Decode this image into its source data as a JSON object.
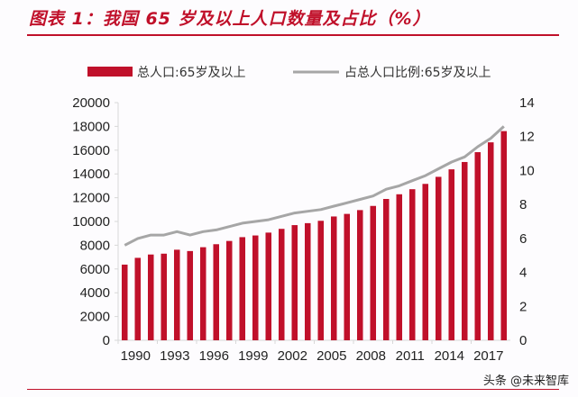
{
  "title": "图表 1：我国 65 岁及以上人口数量及占比（%）",
  "watermark": "头条 @未来智库",
  "chart_data": {
    "type": "bar+line",
    "title": "图表 1：我国 65 岁及以上人口数量及占比（%）",
    "categories": [
      1990,
      1991,
      1992,
      1993,
      1994,
      1995,
      1996,
      1997,
      1998,
      1999,
      2000,
      2001,
      2002,
      2003,
      2004,
      2005,
      2006,
      2007,
      2008,
      2009,
      2010,
      2011,
      2012,
      2013,
      2014,
      2015,
      2016,
      2017,
      2018,
      2019
    ],
    "x_tick_labels": [
      "1990",
      "1993",
      "1996",
      "1999",
      "2002",
      "2005",
      "2008",
      "2011",
      "2014",
      "2017"
    ],
    "series": [
      {
        "name": "总人口:65岁及以上",
        "type": "bar",
        "axis": "left",
        "color": "#c0102a",
        "values": [
          6368,
          6938,
          7218,
          7289,
          7622,
          7510,
          7833,
          8085,
          8359,
          8679,
          8821,
          9062,
          9377,
          9692,
          9857,
          10055,
          10419,
          10636,
          10956,
          11307,
          11894,
          12288,
          12714,
          13161,
          13755,
          14386,
          15003,
          15831,
          16658,
          17603
        ]
      },
      {
        "name": "占总人口比例:65岁及以上",
        "type": "line",
        "axis": "right",
        "color": "#a6a6a6",
        "values": [
          5.6,
          6.0,
          6.2,
          6.2,
          6.4,
          6.2,
          6.4,
          6.5,
          6.7,
          6.9,
          7.0,
          7.1,
          7.3,
          7.5,
          7.6,
          7.7,
          7.9,
          8.1,
          8.3,
          8.5,
          8.9,
          9.1,
          9.4,
          9.7,
          10.1,
          10.5,
          10.8,
          11.4,
          11.9,
          12.6
        ]
      }
    ],
    "y_left": {
      "range": [
        0,
        20000
      ],
      "ticks": [
        "0",
        "2000",
        "4000",
        "6000",
        "8000",
        "10000",
        "12000",
        "14000",
        "16000",
        "18000",
        "20000"
      ]
    },
    "y_right": {
      "range": [
        0,
        14
      ],
      "ticks": [
        "0",
        "2",
        "4",
        "6",
        "8",
        "10",
        "12",
        "14"
      ]
    },
    "legend": {
      "placement": "top",
      "entries": [
        "总人口:65岁及以上",
        "占总人口比例:65岁及以上"
      ]
    },
    "grid": false
  }
}
